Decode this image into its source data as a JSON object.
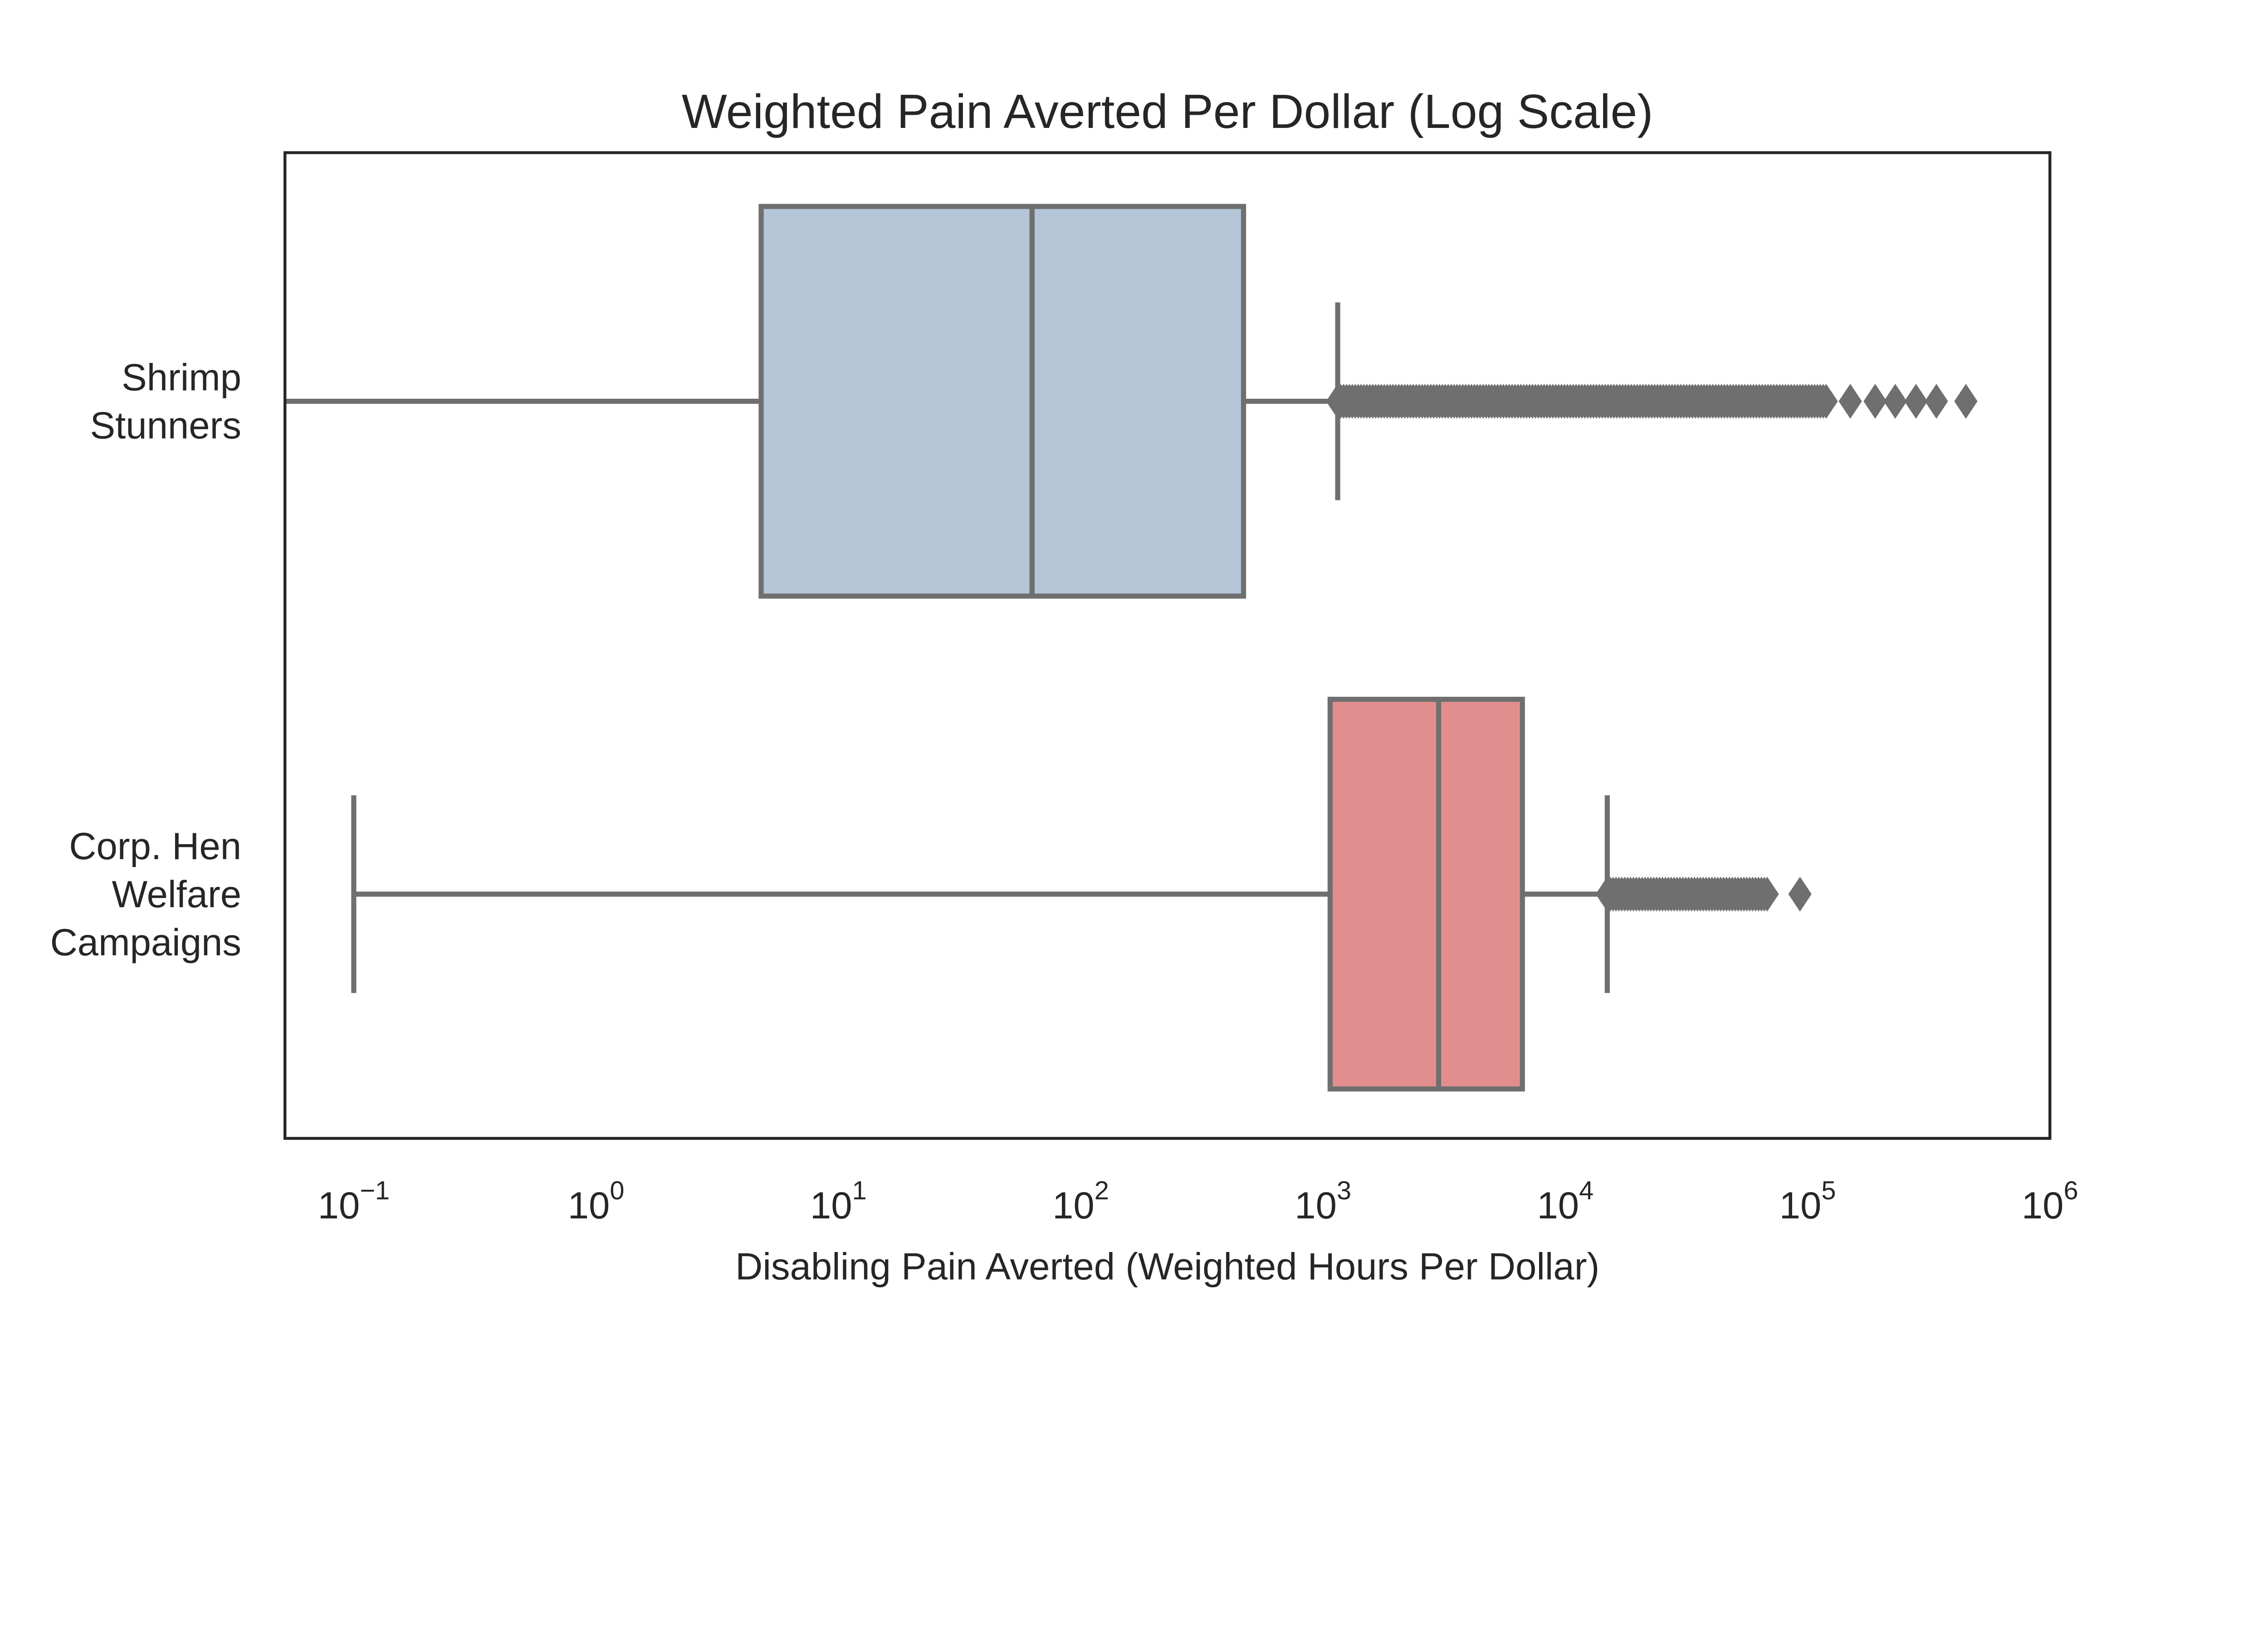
{
  "chart_data": {
    "type": "boxplot",
    "orientation": "horizontal",
    "title": "Weighted Pain Averted Per Dollar (Log Scale)",
    "xlabel": "Disabling Pain Averted (Weighted Hours Per Dollar)",
    "ylabel": "",
    "xscale": "log",
    "xlim": [
      0.052,
      1000000
    ],
    "grid": false,
    "xticks": [
      {
        "value": 0.1,
        "base": "10",
        "exp": "−1"
      },
      {
        "value": 1,
        "base": "10",
        "exp": "0"
      },
      {
        "value": 10,
        "base": "10",
        "exp": "1"
      },
      {
        "value": 100,
        "base": "10",
        "exp": "2"
      },
      {
        "value": 1000,
        "base": "10",
        "exp": "3"
      },
      {
        "value": 10000,
        "base": "10",
        "exp": "4"
      },
      {
        "value": 100000,
        "base": "10",
        "exp": "5"
      },
      {
        "value": 1000000,
        "base": "10",
        "exp": "6"
      }
    ],
    "series": [
      {
        "name": "Shrimp Stunners",
        "label_lines": [
          "Shrimp",
          "Stunners"
        ],
        "color": "#b3c5d7",
        "whisker_low": 0.04,
        "q1": 4.8,
        "median": 63,
        "q3": 470,
        "whisker_high": 1150,
        "outliers_dense_range": [
          1150,
          120000
        ],
        "outliers_sparse": [
          150000,
          190000,
          230000,
          280000,
          340000,
          450000
        ]
      },
      {
        "name": "Corp. Hen Welfare Campaigns",
        "label_lines": [
          "Corp. Hen",
          "Welfare",
          "Campaigns"
        ],
        "color": "#e38e8e",
        "whisker_low": 0.1,
        "q1": 1070,
        "median": 3000,
        "q3": 6650,
        "whisker_high": 14900,
        "outliers_dense_range": [
          14900,
          70000
        ],
        "outliers_sparse": [
          93000
        ]
      }
    ],
    "line_color": "#6f6f6f"
  }
}
